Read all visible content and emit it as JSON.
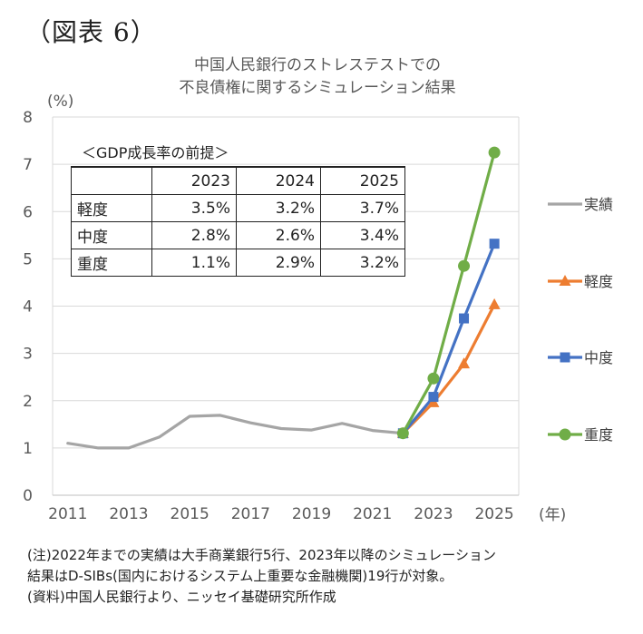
{
  "figure_label": "（図表 6）",
  "title_lines": [
    "中国人民銀行のストレステストでの",
    "不良債権に関するシミュレーション結果"
  ],
  "chart_data": {
    "type": "line",
    "title": "中国人民銀行のストレステストでの不良債権に関するシミュレーション結果",
    "y_unit": "(%)",
    "x_unit": "(年)",
    "ylim": [
      0,
      8
    ],
    "yticks": [
      0,
      1,
      2,
      3,
      4,
      5,
      6,
      7,
      8
    ],
    "xlim": [
      2010.5,
      2025.8
    ],
    "xticks": [
      2011,
      2013,
      2015,
      2017,
      2019,
      2021,
      2023,
      2025
    ],
    "grid": true,
    "legend_position": "right",
    "series": [
      {
        "name": "実績",
        "color": "#a5a5a5",
        "marker": "none",
        "x": [
          2011,
          2012,
          2013,
          2014,
          2015,
          2016,
          2017,
          2018,
          2019,
          2020,
          2021,
          2022
        ],
        "y": [
          1.1,
          1.0,
          1.0,
          1.23,
          1.67,
          1.69,
          1.53,
          1.41,
          1.38,
          1.52,
          1.37,
          1.31
        ]
      },
      {
        "name": "軽度",
        "color": "#ed7d31",
        "marker": "triangle",
        "x": [
          2022,
          2023,
          2024,
          2025
        ],
        "y": [
          1.31,
          1.96,
          2.78,
          4.03
        ]
      },
      {
        "name": "中度",
        "color": "#4472c4",
        "marker": "square",
        "x": [
          2022,
          2023,
          2024,
          2025
        ],
        "y": [
          1.31,
          2.08,
          3.74,
          5.32
        ]
      },
      {
        "name": "重度",
        "color": "#70ad47",
        "marker": "circle",
        "x": [
          2022,
          2023,
          2024,
          2025
        ],
        "y": [
          1.31,
          2.47,
          4.85,
          7.25
        ]
      }
    ]
  },
  "assumptions": {
    "caption": "＜GDP成長率の前提＞",
    "columns": [
      "",
      "2023",
      "2024",
      "2025"
    ],
    "rows": [
      [
        "軽度",
        "3.5%",
        "3.2%",
        "3.7%"
      ],
      [
        "中度",
        "2.8%",
        "2.6%",
        "3.4%"
      ],
      [
        "重度",
        "1.1%",
        "2.9%",
        "3.2%"
      ]
    ]
  },
  "notes": [
    "(注)2022年までの実績は大手商業銀行5行、2023年以降のシミュレーション",
    "結果はD-SIBs(国内におけるシステム上重要な金融機関)19行が対象。",
    "(資料)中国人民銀行より、ニッセイ基礎研究所作成"
  ]
}
